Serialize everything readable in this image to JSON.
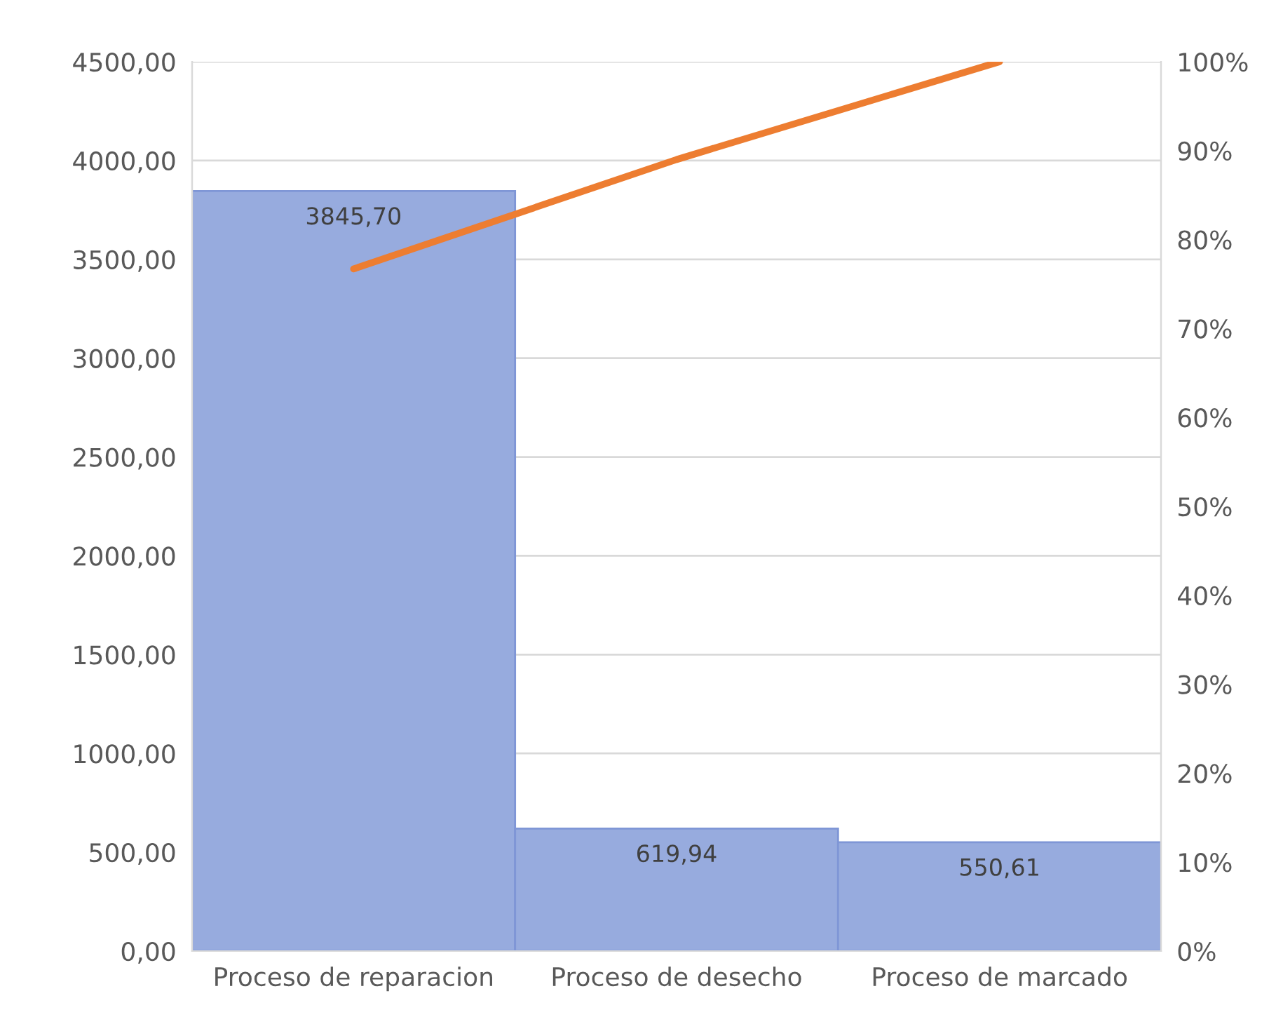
{
  "chart_data": {
    "type": "bar",
    "categories": [
      "Proceso de reparacion",
      "Proceso de desecho",
      "Proceso de marcado"
    ],
    "series": [
      {
        "color": "#97abde",
        "values": [
          3845.7,
          619.94,
          550.61
        ],
        "value_labels": [
          "3845,70",
          "619,94",
          "550,61"
        ]
      },
      {
        "type": "line",
        "axis": "y2",
        "color": "#ed7d31",
        "values": [
          76.7,
          89.0,
          100
        ]
      }
    ],
    "ylim": [
      0,
      4500
    ],
    "yticks": [
      {
        "value": 0,
        "label": "0,00"
      },
      {
        "value": 500,
        "label": "500,00"
      },
      {
        "value": 1000,
        "label": "1000,00"
      },
      {
        "value": 1500,
        "label": "1500,00"
      },
      {
        "value": 2000,
        "label": "2000,00"
      },
      {
        "value": 2500,
        "label": "2500,00"
      },
      {
        "value": 3000,
        "label": "3000,00"
      },
      {
        "value": 3500,
        "label": "3500,00"
      },
      {
        "value": 4000,
        "label": "4000,00"
      },
      {
        "value": 4500,
        "label": "4500,00"
      }
    ],
    "y2lim": [
      0,
      100
    ],
    "y2ticks": [
      {
        "value": 0,
        "label": "0%"
      },
      {
        "value": 10,
        "label": "10%"
      },
      {
        "value": 20,
        "label": "20%"
      },
      {
        "value": 30,
        "label": "30%"
      },
      {
        "value": 40,
        "label": "40%"
      },
      {
        "value": 50,
        "label": "50%"
      },
      {
        "value": 60,
        "label": "60%"
      },
      {
        "value": 70,
        "label": "70%"
      },
      {
        "value": 80,
        "label": "80%"
      },
      {
        "value": 90,
        "label": "90%"
      },
      {
        "value": 100,
        "label": "100%"
      }
    ],
    "grid": "y",
    "legend": false
  }
}
